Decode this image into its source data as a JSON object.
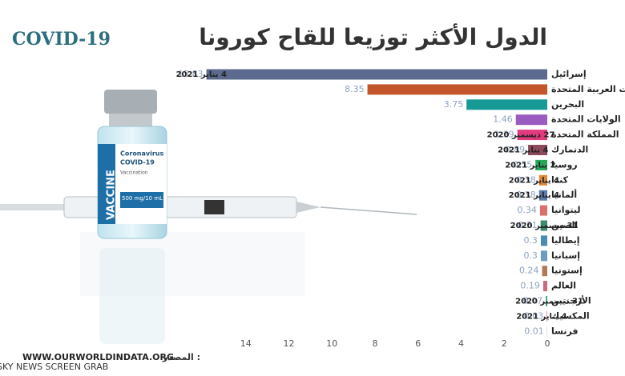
{
  "chart_data": {
    "type": "hbar",
    "title": "الدول الأكثر توزيعا للقاح كورونا",
    "categories": [
      "إسرائيل",
      "الإمارات العربية المتحدة",
      "البحرين",
      "الولايات المتحدة",
      "المملكة المتحدة",
      "الدنمارك",
      "روسيا",
      "كندا",
      "ألمانيا",
      "ليتوانيا",
      "الصين",
      "إيطاليا",
      "إسبانيا",
      "إستونيا",
      "العالم",
      "الأرجنتين",
      "المكسيك",
      "فرنسا"
    ],
    "values": [
      15.83,
      8.35,
      3.75,
      1.46,
      1.39,
      0.89,
      0.55,
      0.38,
      0.38,
      0.34,
      0.31,
      0.3,
      0.3,
      0.24,
      0.19,
      0.07,
      0.03,
      0.01
    ],
    "dates": [
      "4 يناير 2021",
      null,
      null,
      null,
      "27 ديسمبر 2020",
      "4 يناير 2021",
      "2 يناير 2021",
      "4 يناير 2021",
      "4 يناير 2021",
      null,
      "31 ديسمبر 2020",
      null,
      null,
      null,
      null,
      "31 ديسمبر 2020",
      "4 يناير 2021",
      null
    ],
    "colors": [
      "#5b6a8e",
      "#c2552b",
      "#179a95",
      "#9a5cc0",
      "#e23a7e",
      "#8d4a5a",
      "#27a95a",
      "#e0883a",
      "#5d7cab",
      "#d8706e",
      "#3d8c6c",
      "#4a8cb4",
      "#6d9bc4",
      "#b07a58",
      "#c66c7c",
      "#3aa48c",
      "#d27c8c",
      "#8d9cb2"
    ],
    "xlim": [
      0,
      16
    ],
    "xticks": [
      0,
      2,
      4,
      6,
      8,
      10,
      12,
      14
    ],
    "grid": false
  },
  "logo": "COVID-19",
  "source_label": "المصدر :",
  "source": "WWW.OURWORLDINDATA.ORG",
  "watermark": "SKY NEWS SCREEN GRAB",
  "vial_text": [
    "Coronavirus",
    "COVID-19",
    "Vaccination",
    "500 mg/10 mL",
    "VACCINE"
  ]
}
